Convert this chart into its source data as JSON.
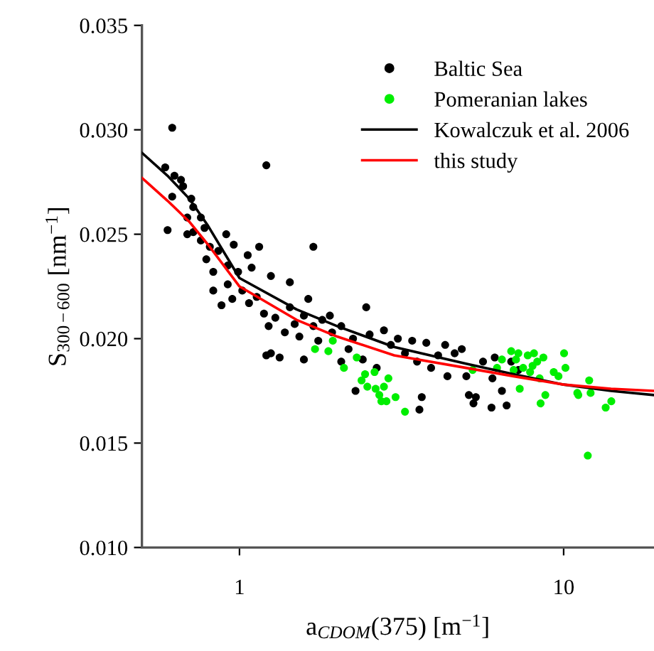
{
  "chart_data": {
    "type": "scatter",
    "xlabel": "a$_{CDOM}$(375) [m$^{−1}$]",
    "ylabel": "S$_{300−600}$ [nm$^{−1}$]",
    "log": "x",
    "xlim": [
      0.5,
      19
    ],
    "ylim": [
      0.01,
      0.035
    ],
    "xticks": [
      1,
      10
    ],
    "yticks": [
      {
        "value": 0.01,
        "label": "0.010"
      },
      {
        "value": 0.015,
        "label": "0.015"
      },
      {
        "value": 0.02,
        "label": "0.020"
      },
      {
        "value": 0.025,
        "label": "0.025"
      },
      {
        "value": 0.03,
        "label": "0.030"
      },
      {
        "value": 0.035,
        "label": "0.035"
      }
    ],
    "grid": false,
    "legend": "top right",
    "series": [
      {
        "name": "Baltic Sea",
        "marker": "circle",
        "color": "#000000",
        "x": [
          0.83,
          0.88,
          0.92,
          0.95,
          1.02,
          1.07,
          1.13,
          1.19,
          1.23,
          1.25,
          1.21,
          1.33,
          1.29,
          1.38,
          1.43,
          1.48,
          1.53,
          1.58,
          1.63,
          1.69,
          1.75,
          1.8,
          1.9,
          1.93,
          2.06,
          2.17,
          2.24,
          2.28,
          2.4,
          2.46,
          2.52,
          2.65,
          2.79,
          2.93,
          3.08,
          3.24,
          3.41,
          3.53,
          3.59,
          3.65,
          3.77,
          3.9,
          4.1,
          4.31,
          4.38,
          4.61,
          4.85,
          5.01,
          5.1,
          5.27,
          5.36,
          5.64,
          5.99,
          6.03,
          6.13,
          6.45,
          6.67,
          6.89,
          7.25,
          1.58,
          2.06,
          0.62,
          0.59,
          0.63,
          0.6,
          0.62,
          0.66,
          0.67,
          0.71,
          0.72,
          0.69,
          0.76,
          0.69,
          0.72,
          0.78,
          0.91,
          1.21,
          1.69,
          1.15,
          1.25,
          1.43,
          0.96,
          1.06,
          0.86,
          0.81,
          0.76,
          0.92,
          0.79,
          0.83,
          0.99,
          1.09
        ],
        "values": [
          0.0223,
          0.0216,
          0.0226,
          0.0219,
          0.0223,
          0.0217,
          0.022,
          0.0212,
          0.0206,
          0.0193,
          0.0192,
          0.0191,
          0.021,
          0.0203,
          0.0215,
          0.0207,
          0.0201,
          0.0211,
          0.0219,
          0.0206,
          0.0199,
          0.0209,
          0.0211,
          0.0203,
          0.0206,
          0.0195,
          0.02,
          0.0175,
          0.019,
          0.0215,
          0.0202,
          0.0186,
          0.0204,
          0.0197,
          0.02,
          0.0193,
          0.0199,
          0.0189,
          0.0166,
          0.0172,
          0.0198,
          0.0186,
          0.0192,
          0.0197,
          0.0182,
          0.0193,
          0.0195,
          0.0182,
          0.0173,
          0.0169,
          0.0172,
          0.0189,
          0.0167,
          0.0181,
          0.0191,
          0.0175,
          0.0168,
          0.0189,
          0.0185,
          0.019,
          0.0189,
          0.0301,
          0.0282,
          0.0278,
          0.0252,
          0.0268,
          0.0276,
          0.0273,
          0.0267,
          0.0263,
          0.0258,
          0.0258,
          0.025,
          0.0251,
          0.0253,
          0.025,
          0.0283,
          0.0244,
          0.0244,
          0.023,
          0.0227,
          0.0245,
          0.024,
          0.0242,
          0.0244,
          0.0247,
          0.0235,
          0.0238,
          0.0232,
          0.0232,
          0.0234
        ]
      },
      {
        "name": "Pomeranian lakes",
        "marker": "circle",
        "color": "#00ee00",
        "x": [
          1.71,
          1.88,
          1.94,
          2.1,
          2.3,
          2.38,
          2.44,
          2.48,
          2.61,
          2.63,
          2.7,
          2.74,
          2.79,
          2.84,
          2.88,
          3.03,
          3.24,
          5.24,
          6.23,
          6.45,
          6.89,
          7.01,
          7.13,
          7.25,
          7.32,
          7.5,
          7.75,
          7.88,
          8.02,
          8.1,
          8.29,
          8.43,
          8.49,
          8.66,
          8.78,
          9.32,
          9.64,
          10.03,
          10.13,
          11.02,
          11.1,
          11.87,
          11.99,
          12.11,
          13.48,
          14.03
        ],
        "values": [
          0.0195,
          0.0194,
          0.0199,
          0.0186,
          0.0191,
          0.018,
          0.0183,
          0.0177,
          0.0184,
          0.0176,
          0.0173,
          0.017,
          0.0177,
          0.017,
          0.0181,
          0.0172,
          0.0165,
          0.0185,
          0.0186,
          0.019,
          0.0194,
          0.0185,
          0.019,
          0.0193,
          0.0176,
          0.0186,
          0.0192,
          0.0184,
          0.0187,
          0.0193,
          0.0189,
          0.0181,
          0.0169,
          0.0191,
          0.0173,
          0.0184,
          0.0182,
          0.0193,
          0.0186,
          0.0174,
          0.0173,
          0.0144,
          0.018,
          0.0174,
          0.0167,
          0.017
        ]
      },
      {
        "name": "Kowalczuk et al. 2006",
        "type": "line",
        "color": "#000000",
        "x": [
          0.5,
          0.6,
          0.7,
          0.8,
          1,
          1.5,
          2,
          3,
          5,
          7,
          10,
          14,
          19
        ],
        "values": [
          0.0289,
          0.0278,
          0.0267,
          0.0254,
          0.0229,
          0.0214,
          0.0206,
          0.0196,
          0.0188,
          0.0183,
          0.0178,
          0.0175,
          0.0173
        ]
      },
      {
        "name": "this study",
        "type": "line",
        "color": "#ff0000",
        "x": [
          0.5,
          0.6,
          0.7,
          0.8,
          1,
          1.5,
          2,
          3,
          5,
          7,
          10,
          14,
          19
        ],
        "values": [
          0.0277,
          0.0266,
          0.0256,
          0.0245,
          0.0225,
          0.0209,
          0.0201,
          0.0192,
          0.0186,
          0.0182,
          0.0178,
          0.0176,
          0.0175
        ]
      }
    ]
  }
}
